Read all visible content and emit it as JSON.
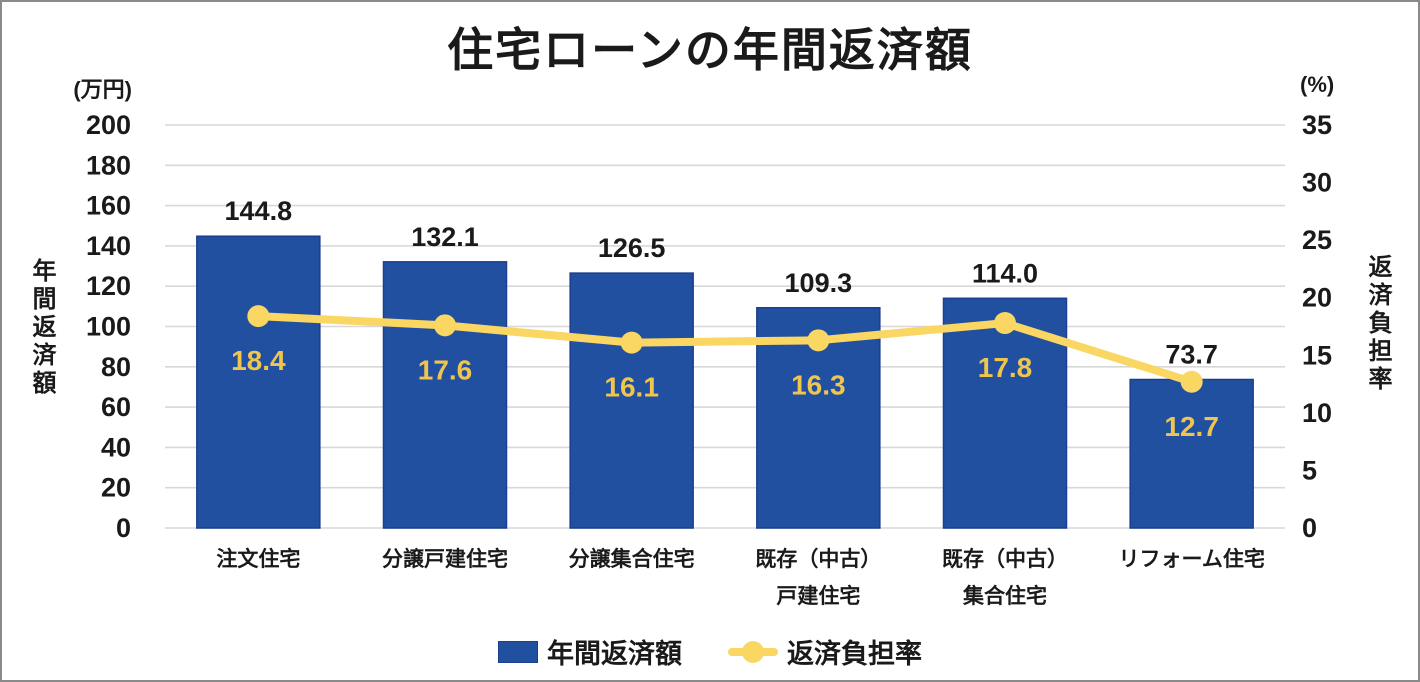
{
  "chart_data": {
    "type": "bar+line",
    "title": "住宅ローンの年間返済額",
    "categories": [
      "注文住宅",
      "分譲戸建住宅",
      "分譲集合住宅",
      "既存（中古）\n戸建住宅",
      "既存（中古）\n集合住宅",
      "リフォーム住宅"
    ],
    "series": [
      {
        "name": "年間返済額",
        "type": "bar",
        "axis": "left",
        "values": [
          144.8,
          132.1,
          126.5,
          109.3,
          114.0,
          73.7
        ],
        "color": "#2150A0",
        "border_color": "#1B3F8E"
      },
      {
        "name": "返済負担率",
        "type": "line",
        "axis": "right",
        "values": [
          18.4,
          17.6,
          16.1,
          16.3,
          17.8,
          12.7
        ],
        "color": "#FAD663",
        "label_color": "#EFC54E"
      }
    ],
    "left_axis": {
      "unit": "(万円)",
      "title": "年間返済額",
      "min": 0,
      "max": 200,
      "step": 20
    },
    "right_axis": {
      "unit": "(%)",
      "title": "返済負担率",
      "min": 0,
      "max": 35,
      "step": 5
    },
    "grid": true,
    "grid_color": "#D8D8D8",
    "legend_position": "bottom"
  }
}
